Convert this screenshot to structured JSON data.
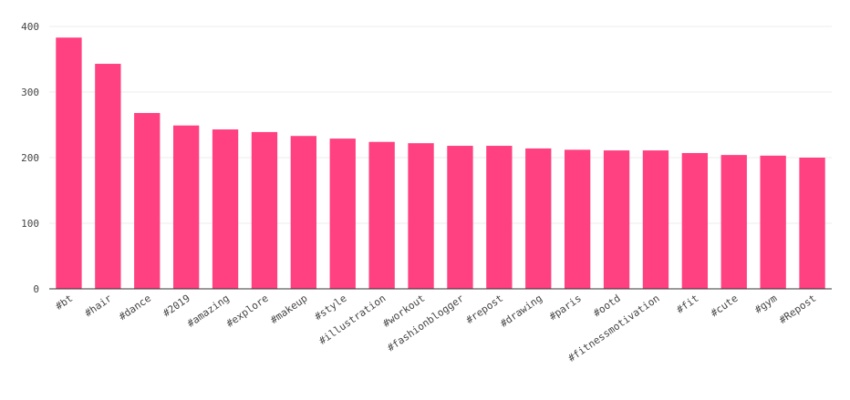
{
  "chart_data": {
    "type": "bar",
    "title": "",
    "xlabel": "",
    "ylabel": "",
    "categories": [
      "#bt",
      "#hair",
      "#dance",
      "#2019",
      "#amazing",
      "#explore",
      "#makeup",
      "#style",
      "#illustration",
      "#workout",
      "#fashionblogger",
      "#repost",
      "#drawing",
      "#paris",
      "#ootd",
      "#fitnessmotivation",
      "#fit",
      "#cute",
      "#gym",
      "#Repost"
    ],
    "values": [
      383,
      343,
      268,
      249,
      243,
      239,
      233,
      229,
      224,
      222,
      218,
      218,
      214,
      212,
      211,
      211,
      207,
      204,
      203,
      200
    ],
    "ylim": [
      0,
      400
    ],
    "yticks": [
      0,
      100,
      200,
      300,
      400
    ],
    "grid": true,
    "legend": "none",
    "bar_color": "#ff4081",
    "grid_color": "#eeeeee",
    "axis_color": "#333333"
  }
}
